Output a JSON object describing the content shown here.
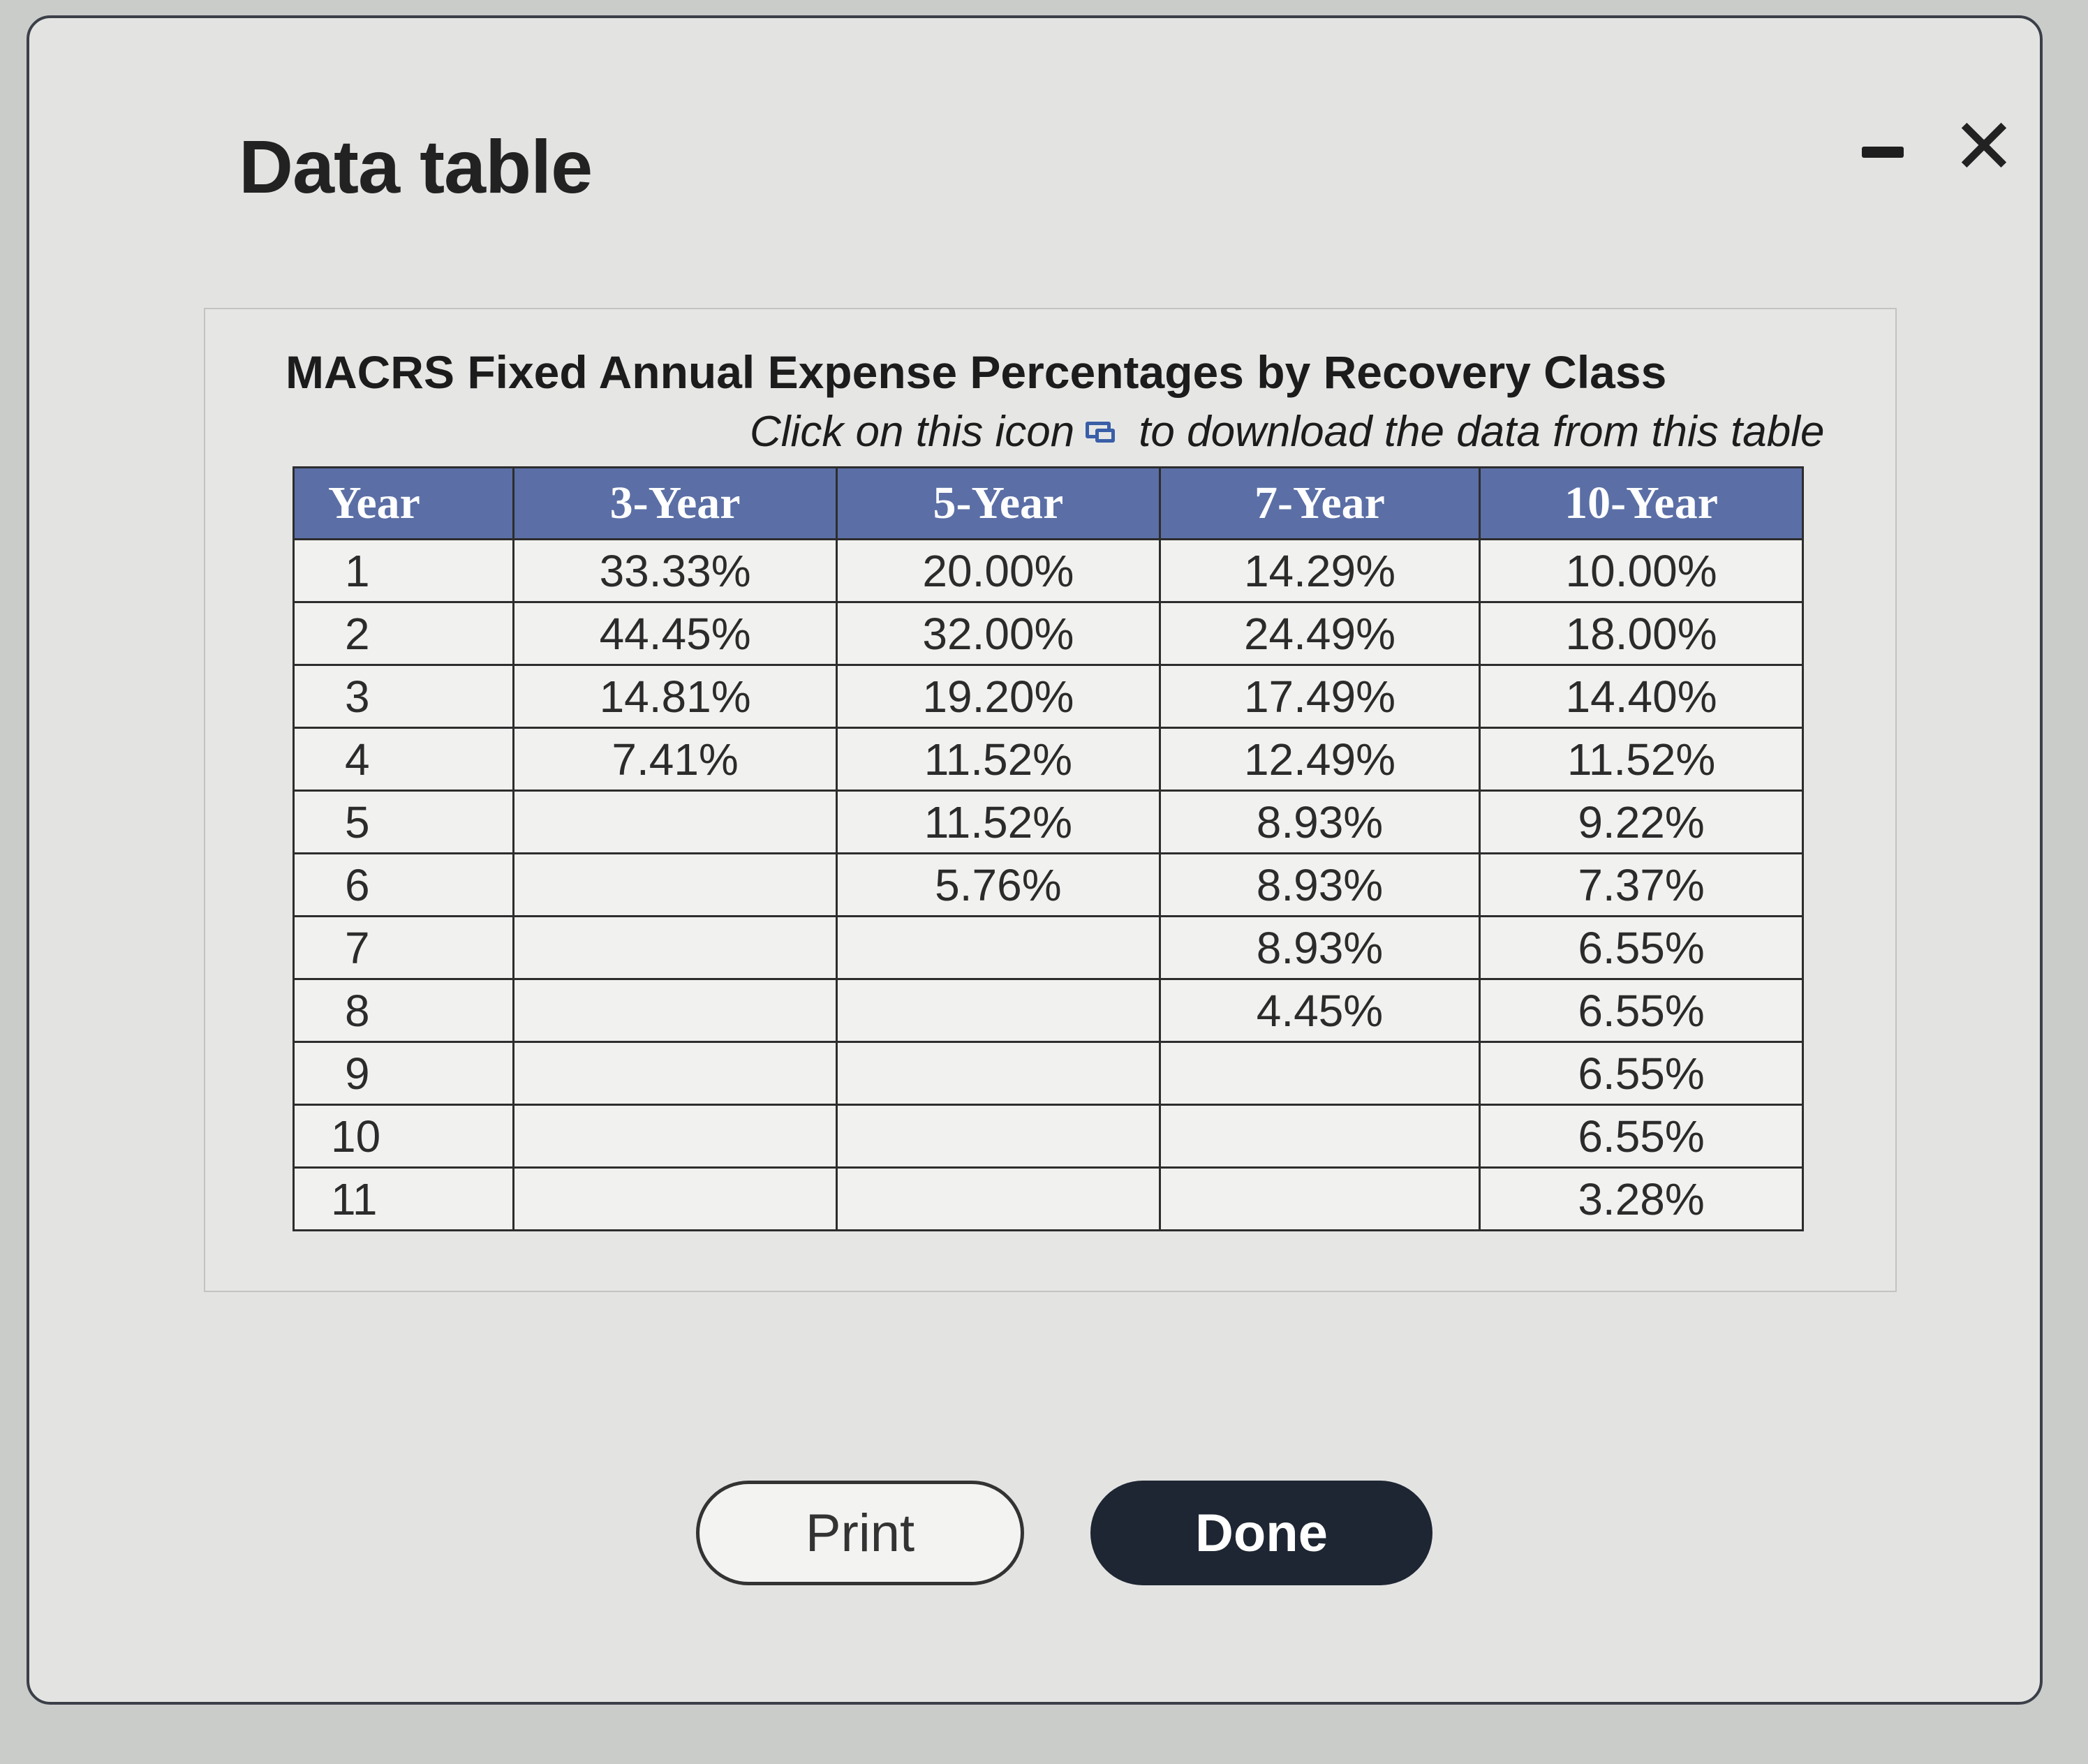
{
  "dialog": {
    "title": "Data table",
    "close_symbol": "✕"
  },
  "table": {
    "title": "MACRS Fixed Annual Expense Percentages by Recovery Class",
    "download_prefix": "Click on this icon",
    "download_suffix": "to download the data from this table",
    "download_icon": "download-data-icon",
    "headers": [
      "Year",
      "3-Year",
      "5-Year",
      "7-Year",
      "10-Year"
    ],
    "rows": [
      [
        "1",
        "33.33%",
        "20.00%",
        "14.29%",
        "10.00%"
      ],
      [
        "2",
        "44.45%",
        "32.00%",
        "24.49%",
        "18.00%"
      ],
      [
        "3",
        "14.81%",
        "19.20%",
        "17.49%",
        "14.40%"
      ],
      [
        "4",
        "7.41%",
        "11.52%",
        "12.49%",
        "11.52%"
      ],
      [
        "5",
        "",
        "11.52%",
        "8.93%",
        "9.22%"
      ],
      [
        "6",
        "",
        "5.76%",
        "8.93%",
        "7.37%"
      ],
      [
        "7",
        "",
        "",
        "8.93%",
        "6.55%"
      ],
      [
        "8",
        "",
        "",
        "4.45%",
        "6.55%"
      ],
      [
        "9",
        "",
        "",
        "",
        "6.55%"
      ],
      [
        "10",
        "",
        "",
        "",
        "6.55%"
      ],
      [
        "11",
        "",
        "",
        "",
        "3.28%"
      ]
    ]
  },
  "buttons": {
    "print": "Print",
    "done": "Done"
  },
  "colors": {
    "header_bg": "#5b6fa6",
    "done_bg": "#1e2633",
    "icon_blue": "#3a5fa8"
  }
}
